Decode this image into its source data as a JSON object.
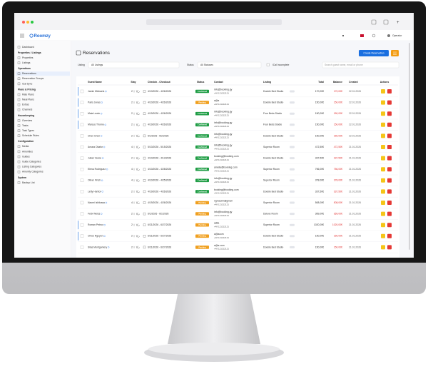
{
  "app": {
    "logo": "Roomzy",
    "user": "Operator"
  },
  "sidebar": {
    "top": "Dashboard",
    "sections": [
      {
        "title": "Properties / Listings",
        "items": [
          "Properties",
          "Listings"
        ]
      },
      {
        "title": "Operations",
        "items": [
          "Reservations",
          "Reservation Groups",
          "iCal Sync"
        ]
      },
      {
        "title": "Plans & Pricing",
        "items": [
          "Rate Plans",
          "Meal Plans",
          "Extras",
          "Channels"
        ]
      },
      {
        "title": "Housekeeping",
        "items": [
          "Overview",
          "Tasks",
          "Task Types",
          "Schedule Rules"
        ]
      },
      {
        "title": "Configuration",
        "items": [
          "Media",
          "Amenities",
          "Guides",
          "Guide Categories",
          "Listing Categories",
          "Amenity Categories"
        ]
      },
      {
        "title": "System",
        "items": [
          "Backup List"
        ]
      }
    ]
  },
  "page": {
    "title": "Reservations",
    "create_button": "Create Reservation",
    "filters": {
      "listing_label": "Listing",
      "listing_value": "All Listings",
      "status_label": "Status",
      "status_value": "All Statuses",
      "ical": "iCal Incomplete",
      "search_placeholder": "Search guest name, email or phone"
    }
  },
  "table": {
    "headers": [
      "Guest Name",
      "Stay",
      "Checkin - Checkout",
      "Status",
      "Contact",
      "Listing",
      "Total",
      "Balance",
      "Created",
      "Actions"
    ],
    "rows": [
      {
        "guest": "Jamie Michaels",
        "stay": 2,
        "dates": "4/10/2026 - 4/26/2026",
        "status": "Confirmed",
        "status_color": "#1f9d45",
        "email": "info@booking.gy",
        "phone": "+48 121212121",
        "listing": "Double Bed Studio",
        "total": "170,00€",
        "balance": "170,00€",
        "created": "22.01.2026"
      },
      {
        "guest": "Paris Jonas",
        "stay": 2,
        "dates": "4/10/2026 - 4/26/2026",
        "status": "Pending",
        "status_color": "#f0a020",
        "email": "a@a",
        "phone": "+48 121212121",
        "listing": "Double Bed Studio",
        "total": "150,00€",
        "balance": "150,00€",
        "created": "22.01.2026"
      },
      {
        "guest": "Maia Lewin",
        "stay": 2,
        "dates": "4/19/2026 - 4/26/2026",
        "status": "Confirmed",
        "status_color": "#1f9d45",
        "email": "info@booking.gy",
        "phone": "+48 121212121",
        "listing": "Four Beds Studio",
        "total": "150,00€",
        "balance": "150,00€",
        "created": "22.01.2026"
      },
      {
        "guest": "Marcus Thorne",
        "stay": 2,
        "dates": "4/19/2026 - 4/26/2026",
        "status": "Confirmed",
        "status_color": "#1f9d45",
        "email": "info@booking.gy",
        "phone": "+48 121212121",
        "listing": "Four Beds Studio",
        "total": "150,00€",
        "balance": "150,00€",
        "created": "22.01.2026"
      },
      {
        "guest": "Chen Chen",
        "stay": 2,
        "dates": "5/1/2026 - 5/2/2026",
        "status": "Confirmed",
        "status_color": "#1f9d45",
        "email": "info@booking.gy",
        "phone": "+48 121212121",
        "listing": "Double Bed Studio",
        "total": "150,00€",
        "balance": "150,00€",
        "created": "22.01.2026"
      },
      {
        "guest": "Amara Okafor",
        "stay": 4,
        "dates": "5/10/2026 - 5/15/2026",
        "status": "Confirmed",
        "status_color": "#1f9d45",
        "email": "info@booking.gy",
        "phone": "+48 121212121",
        "listing": "Superior Room",
        "total": "472,50€",
        "balance": "472,50€",
        "created": "21.01.2026"
      },
      {
        "guest": "Julian Vance",
        "stay": 2,
        "dates": "4/10/2026 - 4/13/2026",
        "status": "Confirmed",
        "status_color": "#1f9d45",
        "email": "booking@booking.com",
        "phone": "+48 121212121",
        "listing": "Double Bed Studio",
        "total": "337,50€",
        "balance": "337,50€",
        "created": "21.01.2026"
      },
      {
        "guest": "Elena Rodriguez",
        "stay": 4,
        "dates": "4/10/2026 - 4/28/2026",
        "status": "Confirmed",
        "status_color": "#1f9d45",
        "email": "amelia@booking.com",
        "phone": "+48 121212121",
        "listing": "Superior Room",
        "total": "756,00€",
        "balance": "756,00€",
        "created": "21.01.2026"
      },
      {
        "guest": "Oliver Finch",
        "stay": 4,
        "dates": "4/10/2026 - 4/25/2026",
        "status": "Confirmed",
        "status_color": "#1f9d45",
        "email": "info@booking.gy",
        "phone": "+48 121212121",
        "listing": "Superior Room",
        "total": "378,00€",
        "balance": "378,00€",
        "created": "21.01.2026"
      },
      {
        "guest": "Letty Harbor",
        "stay": 2,
        "dates": "4/19/2026 - 4/26/2026",
        "status": "Confirmed",
        "status_color": "#1f9d45",
        "email": "booking@booking.com",
        "phone": "+48 121212121",
        "listing": "Double Bed Studio",
        "total": "337,50€",
        "balance": "337,50€",
        "created": "21.01.2026"
      },
      {
        "guest": "Naomi Ishikawa",
        "stay": 4,
        "dates": "4/19/2026 - 4/26/2026",
        "status": "Pending",
        "status_color": "#f0a020",
        "email": "ngmaomi@gmail",
        "phone": "+48 121212121",
        "listing": "Superior Room",
        "total": "508,00€",
        "balance": "508,00€",
        "created": "21.01.2026"
      },
      {
        "guest": "Felix Weiss",
        "stay": 2,
        "dates": "6/1/2026 - 6/1/2026",
        "status": "Pending",
        "status_color": "#f0a020",
        "email": "info@booking.gy",
        "phone": "+48 121212121",
        "listing": "Deluxe Room",
        "total": "369,00€",
        "balance": "369,00€",
        "created": "21.01.2026"
      },
      {
        "guest": "Roman Petrov",
        "stay": 2,
        "dates": "6/21/2026 - 6/27/2026",
        "status": "Pending",
        "status_color": "#f0a020",
        "email": "a@a",
        "phone": "+48 121212121",
        "listing": "Superior Room",
        "total": "1020,00€",
        "balance": "1020,00€",
        "created": "21.01.2026"
      },
      {
        "guest": "Chloe Nguyen",
        "stay": 2,
        "dates": "6/21/2026 - 6/27/2026",
        "status": "Pending",
        "status_color": "#f0a020",
        "email": "a@acom",
        "phone": "+48 121212121",
        "listing": "Double Bed Studio",
        "total": "150,00€",
        "balance": "150,00€",
        "created": "21.01.2026"
      },
      {
        "guest": "Silas Montgomery",
        "stay": 2,
        "dates": "6/21/2026 - 6/27/2026",
        "status": "Pending",
        "status_color": "#f0a020",
        "email": "a@a.com",
        "phone": "+48 121212121",
        "listing": "Double Bed Studio",
        "total": "150,00€",
        "balance": "150,00€",
        "created": "21.01.2026"
      }
    ]
  }
}
